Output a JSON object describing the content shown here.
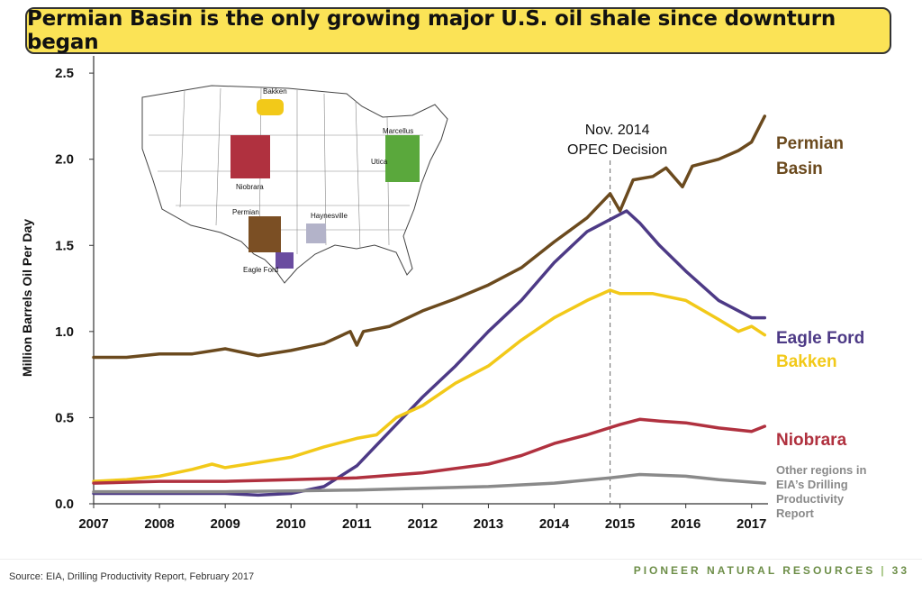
{
  "title": "Permian Basin is the only growing major U.S. oil shale since downturn began",
  "source": "Source: EIA, Drilling Productivity Report, February 2017",
  "brand": "PIONEER NATURAL RESOURCES",
  "page_number": "33",
  "chart_data": {
    "type": "line",
    "ylabel": "Million Barrels Oil Per Day",
    "xlabel": "",
    "xlim": [
      2007,
      2017.25
    ],
    "ylim": [
      0,
      2.6
    ],
    "x_ticks": [
      "2007",
      "2008",
      "2009",
      "2010",
      "2011",
      "2012",
      "2013",
      "2014",
      "2015",
      "2016",
      "2017"
    ],
    "y_ticks": [
      "0.0",
      "0.5",
      "1.0",
      "1.5",
      "2.0",
      "2.5"
    ],
    "annotation": {
      "line1": "Nov. 2014",
      "line2": "OPEC Decision",
      "x": 2014.85
    },
    "series": [
      {
        "name": "Permian Basin",
        "label_lines": [
          "Permian",
          "Basin"
        ],
        "color": "#6b4a1e",
        "points": [
          [
            2007,
            0.85
          ],
          [
            2007.5,
            0.85
          ],
          [
            2008,
            0.87
          ],
          [
            2008.5,
            0.87
          ],
          [
            2009,
            0.9
          ],
          [
            2009.5,
            0.86
          ],
          [
            2010,
            0.89
          ],
          [
            2010.5,
            0.93
          ],
          [
            2010.9,
            1.0
          ],
          [
            2011,
            0.92
          ],
          [
            2011.1,
            1.0
          ],
          [
            2011.5,
            1.03
          ],
          [
            2012,
            1.12
          ],
          [
            2012.5,
            1.19
          ],
          [
            2013,
            1.27
          ],
          [
            2013.5,
            1.37
          ],
          [
            2014,
            1.52
          ],
          [
            2014.5,
            1.66
          ],
          [
            2014.85,
            1.8
          ],
          [
            2015,
            1.7
          ],
          [
            2015.2,
            1.88
          ],
          [
            2015.5,
            1.9
          ],
          [
            2015.7,
            1.95
          ],
          [
            2015.95,
            1.84
          ],
          [
            2016.1,
            1.96
          ],
          [
            2016.5,
            2.0
          ],
          [
            2016.8,
            2.05
          ],
          [
            2017,
            2.1
          ],
          [
            2017.2,
            2.25
          ]
        ]
      },
      {
        "name": "Eagle Ford",
        "label_lines": [
          "Eagle Ford"
        ],
        "color": "#4d3a86",
        "points": [
          [
            2007,
            0.06
          ],
          [
            2008,
            0.06
          ],
          [
            2009,
            0.06
          ],
          [
            2009.5,
            0.05
          ],
          [
            2010,
            0.06
          ],
          [
            2010.5,
            0.1
          ],
          [
            2011,
            0.22
          ],
          [
            2011.5,
            0.42
          ],
          [
            2012,
            0.62
          ],
          [
            2012.5,
            0.8
          ],
          [
            2013,
            1.0
          ],
          [
            2013.5,
            1.18
          ],
          [
            2014,
            1.4
          ],
          [
            2014.5,
            1.58
          ],
          [
            2014.85,
            1.65
          ],
          [
            2015.1,
            1.7
          ],
          [
            2015.3,
            1.63
          ],
          [
            2015.6,
            1.5
          ],
          [
            2016,
            1.35
          ],
          [
            2016.5,
            1.18
          ],
          [
            2017,
            1.08
          ],
          [
            2017.2,
            1.08
          ]
        ]
      },
      {
        "name": "Bakken",
        "label_lines": [
          "Bakken"
        ],
        "color": "#f2c919",
        "points": [
          [
            2007,
            0.13
          ],
          [
            2007.5,
            0.14
          ],
          [
            2008,
            0.16
          ],
          [
            2008.5,
            0.2
          ],
          [
            2008.8,
            0.23
          ],
          [
            2009,
            0.21
          ],
          [
            2009.5,
            0.24
          ],
          [
            2010,
            0.27
          ],
          [
            2010.5,
            0.33
          ],
          [
            2011,
            0.38
          ],
          [
            2011.3,
            0.4
          ],
          [
            2011.6,
            0.5
          ],
          [
            2012,
            0.57
          ],
          [
            2012.5,
            0.7
          ],
          [
            2013,
            0.8
          ],
          [
            2013.5,
            0.95
          ],
          [
            2014,
            1.08
          ],
          [
            2014.5,
            1.18
          ],
          [
            2014.85,
            1.24
          ],
          [
            2015,
            1.22
          ],
          [
            2015.5,
            1.22
          ],
          [
            2016,
            1.18
          ],
          [
            2016.5,
            1.07
          ],
          [
            2016.8,
            1.0
          ],
          [
            2017,
            1.03
          ],
          [
            2017.2,
            0.98
          ]
        ]
      },
      {
        "name": "Niobrara",
        "label_lines": [
          "Niobrara"
        ],
        "color": "#b0313f",
        "points": [
          [
            2007,
            0.12
          ],
          [
            2008,
            0.13
          ],
          [
            2009,
            0.13
          ],
          [
            2010,
            0.14
          ],
          [
            2011,
            0.15
          ],
          [
            2012,
            0.18
          ],
          [
            2013,
            0.23
          ],
          [
            2013.5,
            0.28
          ],
          [
            2014,
            0.35
          ],
          [
            2014.5,
            0.4
          ],
          [
            2015,
            0.46
          ],
          [
            2015.3,
            0.49
          ],
          [
            2015.6,
            0.48
          ],
          [
            2016,
            0.47
          ],
          [
            2016.5,
            0.44
          ],
          [
            2017,
            0.42
          ],
          [
            2017.2,
            0.45
          ]
        ]
      },
      {
        "name": "Other regions in EIA's Drilling Productivity Report",
        "label_lines": [
          "Other regions in",
          "EIA’s Drilling",
          "Productivity",
          "Report"
        ],
        "color": "#8a8a8a",
        "points": [
          [
            2007,
            0.07
          ],
          [
            2008,
            0.07
          ],
          [
            2009,
            0.07
          ],
          [
            2010,
            0.075
          ],
          [
            2011,
            0.08
          ],
          [
            2012,
            0.09
          ],
          [
            2013,
            0.1
          ],
          [
            2014,
            0.12
          ],
          [
            2014.85,
            0.15
          ],
          [
            2015.3,
            0.17
          ],
          [
            2016,
            0.16
          ],
          [
            2016.5,
            0.14
          ],
          [
            2017.2,
            0.12
          ]
        ]
      }
    ]
  },
  "inset_map": {
    "labels": [
      "Bakken",
      "Marcellus",
      "Utica",
      "Niobrara",
      "Permian",
      "Haynesville",
      "Eagle Ford"
    ]
  }
}
